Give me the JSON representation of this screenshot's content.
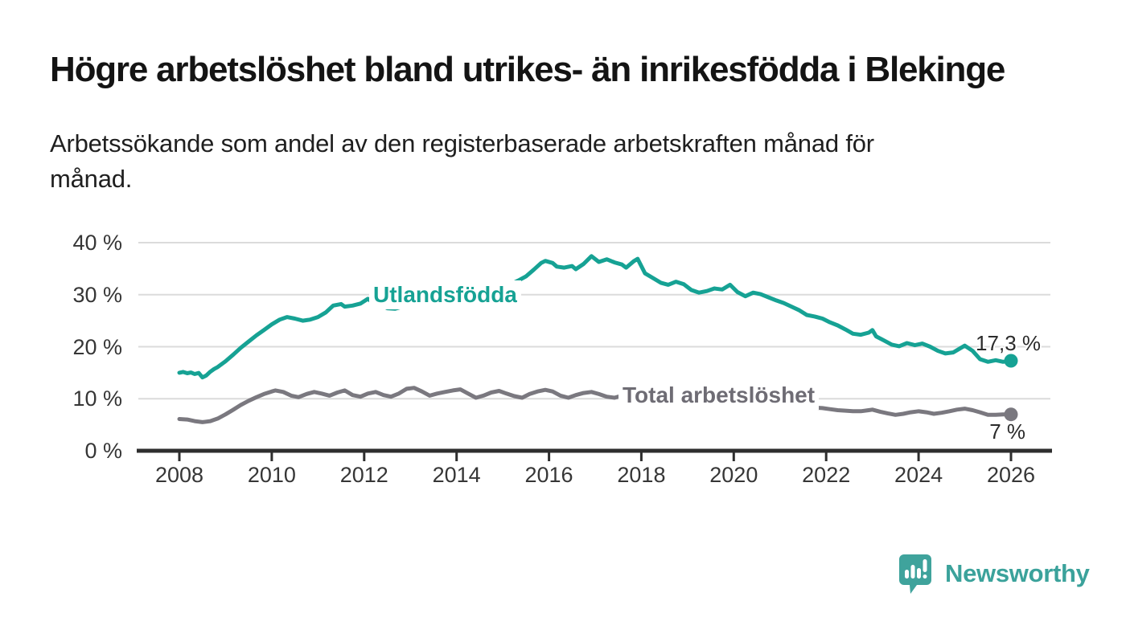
{
  "header": {
    "title": "Högre arbetslöshet bland utrikes- än inrikesfödda i Blekinge",
    "subtitle": "Arbetssökande som andel av den registerbaserade arbetskraften månad för\nmånad."
  },
  "branding": {
    "logo_text": "Newsworthy",
    "logo_icon": "speech-bubble-bar-chart-icon",
    "logo_color": "#3fa39c"
  },
  "chart_data": {
    "type": "line",
    "title": "Högre arbetslöshet bland utrikes- än inrikesfödda i Blekinge",
    "ylabel": "",
    "xlabel": "",
    "unit": "%",
    "grid": "horizontal",
    "legend_position": "inline-labels",
    "y_axis": {
      "tick_values": [
        40,
        30,
        20,
        10,
        0
      ],
      "tick_labels": [
        "40 %",
        "30 %",
        "20 %",
        "10 %",
        "0 %"
      ],
      "range": [
        0,
        43
      ]
    },
    "x_axis": {
      "tick_values": [
        2008,
        2010,
        2012,
        2014,
        2016,
        2018,
        2020,
        2022,
        2024,
        2026
      ],
      "tick_labels": [
        "2008",
        "2010",
        "2012",
        "2014",
        "2016",
        "2018",
        "2020",
        "2022",
        "2024",
        "2026"
      ],
      "range": [
        2008,
        2026
      ]
    },
    "series": [
      {
        "name": "Utlandsfödda",
        "color": "#16a294",
        "end_label": "17,3 %",
        "end_value": 17.3,
        "points": [
          [
            2008.0,
            15.0
          ],
          [
            2008.08,
            15.15
          ],
          [
            2008.17,
            14.9
          ],
          [
            2008.25,
            15.05
          ],
          [
            2008.33,
            14.75
          ],
          [
            2008.42,
            14.95
          ],
          [
            2008.5,
            14.1
          ],
          [
            2008.58,
            14.45
          ],
          [
            2008.67,
            15.2
          ],
          [
            2008.75,
            15.7
          ],
          [
            2008.83,
            16.1
          ],
          [
            2009.0,
            17.2
          ],
          [
            2009.17,
            18.5
          ],
          [
            2009.33,
            19.8
          ],
          [
            2009.5,
            21.0
          ],
          [
            2009.67,
            22.2
          ],
          [
            2009.83,
            23.2
          ],
          [
            2010.0,
            24.3
          ],
          [
            2010.17,
            25.2
          ],
          [
            2010.33,
            25.7
          ],
          [
            2010.5,
            25.4
          ],
          [
            2010.67,
            25.0
          ],
          [
            2010.83,
            25.2
          ],
          [
            2011.0,
            25.7
          ],
          [
            2011.17,
            26.6
          ],
          [
            2011.33,
            27.9
          ],
          [
            2011.5,
            28.2
          ],
          [
            2011.58,
            27.7
          ],
          [
            2011.75,
            27.9
          ],
          [
            2011.92,
            28.3
          ],
          [
            2012.08,
            29.2
          ],
          [
            2012.17,
            28.6
          ],
          [
            2012.25,
            28.8
          ],
          [
            2012.33,
            28.3
          ],
          [
            2012.5,
            27.4
          ],
          [
            2012.67,
            27.3
          ],
          [
            2012.83,
            27.7
          ],
          [
            2013.0,
            28.6
          ],
          [
            2013.17,
            28.9
          ],
          [
            2013.33,
            28.6
          ],
          [
            2013.5,
            28.3
          ],
          [
            2013.67,
            28.4
          ],
          [
            2013.83,
            28.6
          ],
          [
            2014.0,
            29.0
          ],
          [
            2014.17,
            28.8
          ],
          [
            2014.33,
            28.2
          ],
          [
            2014.5,
            28.5
          ],
          [
            2014.67,
            29.3
          ],
          [
            2014.83,
            30.2
          ],
          [
            2015.0,
            31.1
          ],
          [
            2015.17,
            32.0
          ],
          [
            2015.33,
            32.7
          ],
          [
            2015.5,
            33.5
          ],
          [
            2015.67,
            34.8
          ],
          [
            2015.83,
            36.1
          ],
          [
            2015.92,
            36.5
          ],
          [
            2016.08,
            36.1
          ],
          [
            2016.17,
            35.4
          ],
          [
            2016.33,
            35.2
          ],
          [
            2016.5,
            35.5
          ],
          [
            2016.58,
            34.9
          ],
          [
            2016.75,
            35.9
          ],
          [
            2016.92,
            37.4
          ],
          [
            2017.08,
            36.3
          ],
          [
            2017.25,
            36.8
          ],
          [
            2017.42,
            36.2
          ],
          [
            2017.58,
            35.8
          ],
          [
            2017.67,
            35.2
          ],
          [
            2017.83,
            36.4
          ],
          [
            2017.92,
            36.9
          ],
          [
            2018.08,
            34.1
          ],
          [
            2018.25,
            33.2
          ],
          [
            2018.42,
            32.3
          ],
          [
            2018.58,
            31.9
          ],
          [
            2018.75,
            32.5
          ],
          [
            2018.92,
            32.0
          ],
          [
            2019.08,
            30.9
          ],
          [
            2019.25,
            30.4
          ],
          [
            2019.42,
            30.7
          ],
          [
            2019.58,
            31.2
          ],
          [
            2019.75,
            31.0
          ],
          [
            2019.92,
            31.9
          ],
          [
            2020.08,
            30.5
          ],
          [
            2020.25,
            29.7
          ],
          [
            2020.42,
            30.4
          ],
          [
            2020.58,
            30.1
          ],
          [
            2020.75,
            29.5
          ],
          [
            2020.92,
            28.9
          ],
          [
            2021.08,
            28.4
          ],
          [
            2021.25,
            27.7
          ],
          [
            2021.42,
            27.0
          ],
          [
            2021.58,
            26.1
          ],
          [
            2021.75,
            25.8
          ],
          [
            2021.92,
            25.4
          ],
          [
            2022.08,
            24.7
          ],
          [
            2022.25,
            24.1
          ],
          [
            2022.42,
            23.3
          ],
          [
            2022.58,
            22.5
          ],
          [
            2022.75,
            22.3
          ],
          [
            2022.92,
            22.7
          ],
          [
            2023.0,
            23.2
          ],
          [
            2023.08,
            22.0
          ],
          [
            2023.25,
            21.2
          ],
          [
            2023.42,
            20.4
          ],
          [
            2023.58,
            20.1
          ],
          [
            2023.75,
            20.7
          ],
          [
            2023.92,
            20.3
          ],
          [
            2024.08,
            20.6
          ],
          [
            2024.25,
            20.0
          ],
          [
            2024.42,
            19.2
          ],
          [
            2024.58,
            18.7
          ],
          [
            2024.75,
            18.9
          ],
          [
            2024.92,
            19.8
          ],
          [
            2025.0,
            20.2
          ],
          [
            2025.17,
            19.2
          ],
          [
            2025.33,
            17.6
          ],
          [
            2025.5,
            17.1
          ],
          [
            2025.67,
            17.4
          ],
          [
            2025.83,
            17.1
          ],
          [
            2026.0,
            17.3
          ]
        ]
      },
      {
        "name": "Total arbetslöshet",
        "color": "#7a787f",
        "end_label": "7 %",
        "end_value": 7.0,
        "points": [
          [
            2008.0,
            6.1
          ],
          [
            2008.17,
            6.0
          ],
          [
            2008.33,
            5.7
          ],
          [
            2008.5,
            5.5
          ],
          [
            2008.67,
            5.7
          ],
          [
            2008.83,
            6.2
          ],
          [
            2009.0,
            7.0
          ],
          [
            2009.17,
            7.9
          ],
          [
            2009.33,
            8.8
          ],
          [
            2009.5,
            9.6
          ],
          [
            2009.67,
            10.3
          ],
          [
            2009.83,
            10.9
          ],
          [
            2010.0,
            11.4
          ],
          [
            2010.08,
            11.6
          ],
          [
            2010.25,
            11.3
          ],
          [
            2010.42,
            10.6
          ],
          [
            2010.58,
            10.3
          ],
          [
            2010.75,
            10.9
          ],
          [
            2010.92,
            11.3
          ],
          [
            2011.08,
            11.0
          ],
          [
            2011.25,
            10.6
          ],
          [
            2011.42,
            11.2
          ],
          [
            2011.58,
            11.6
          ],
          [
            2011.75,
            10.7
          ],
          [
            2011.92,
            10.4
          ],
          [
            2012.08,
            11.0
          ],
          [
            2012.25,
            11.3
          ],
          [
            2012.42,
            10.7
          ],
          [
            2012.58,
            10.4
          ],
          [
            2012.75,
            11.0
          ],
          [
            2012.92,
            11.9
          ],
          [
            2013.08,
            12.1
          ],
          [
            2013.25,
            11.4
          ],
          [
            2013.42,
            10.6
          ],
          [
            2013.58,
            11.0
          ],
          [
            2013.75,
            11.3
          ],
          [
            2013.92,
            11.6
          ],
          [
            2014.08,
            11.8
          ],
          [
            2014.25,
            11.0
          ],
          [
            2014.42,
            10.2
          ],
          [
            2014.58,
            10.6
          ],
          [
            2014.75,
            11.2
          ],
          [
            2014.92,
            11.5
          ],
          [
            2015.08,
            11.0
          ],
          [
            2015.25,
            10.5
          ],
          [
            2015.42,
            10.2
          ],
          [
            2015.58,
            10.9
          ],
          [
            2015.75,
            11.4
          ],
          [
            2015.92,
            11.7
          ],
          [
            2016.08,
            11.4
          ],
          [
            2016.25,
            10.6
          ],
          [
            2016.42,
            10.2
          ],
          [
            2016.58,
            10.7
          ],
          [
            2016.75,
            11.1
          ],
          [
            2016.92,
            11.3
          ],
          [
            2017.08,
            10.9
          ],
          [
            2017.25,
            10.4
          ],
          [
            2017.42,
            10.2
          ],
          [
            2017.58,
            10.6
          ],
          [
            2017.75,
            10.3
          ],
          [
            2017.92,
            10.5
          ],
          [
            2018.08,
            10.2
          ],
          [
            2018.25,
            9.7
          ],
          [
            2018.42,
            9.4
          ],
          [
            2018.58,
            9.6
          ],
          [
            2018.75,
            9.4
          ],
          [
            2018.92,
            9.6
          ],
          [
            2019.08,
            9.3
          ],
          [
            2019.25,
            9.0
          ],
          [
            2019.42,
            9.1
          ],
          [
            2019.58,
            9.3
          ],
          [
            2019.75,
            9.2
          ],
          [
            2019.92,
            9.4
          ],
          [
            2020.08,
            9.3
          ],
          [
            2020.25,
            9.6
          ],
          [
            2020.42,
            9.8
          ],
          [
            2020.58,
            9.7
          ],
          [
            2020.75,
            9.4
          ],
          [
            2020.92,
            9.2
          ],
          [
            2021.08,
            9.0
          ],
          [
            2021.25,
            8.8
          ],
          [
            2021.42,
            8.6
          ],
          [
            2021.58,
            8.4
          ],
          [
            2021.75,
            8.3
          ],
          [
            2021.92,
            8.2
          ],
          [
            2022.08,
            8.0
          ],
          [
            2022.25,
            7.8
          ],
          [
            2022.42,
            7.7
          ],
          [
            2022.58,
            7.6
          ],
          [
            2022.75,
            7.6
          ],
          [
            2022.92,
            7.8
          ],
          [
            2023.0,
            7.9
          ],
          [
            2023.17,
            7.5
          ],
          [
            2023.33,
            7.2
          ],
          [
            2023.5,
            6.9
          ],
          [
            2023.67,
            7.1
          ],
          [
            2023.83,
            7.4
          ],
          [
            2024.0,
            7.6
          ],
          [
            2024.17,
            7.4
          ],
          [
            2024.33,
            7.1
          ],
          [
            2024.5,
            7.3
          ],
          [
            2024.67,
            7.6
          ],
          [
            2024.83,
            7.9
          ],
          [
            2025.0,
            8.1
          ],
          [
            2025.17,
            7.8
          ],
          [
            2025.33,
            7.4
          ],
          [
            2025.5,
            6.9
          ],
          [
            2025.67,
            6.9
          ],
          [
            2025.83,
            7.0
          ],
          [
            2026.0,
            7.0
          ]
        ]
      }
    ]
  }
}
